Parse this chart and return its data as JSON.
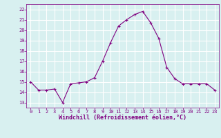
{
  "x": [
    0,
    1,
    2,
    3,
    4,
    5,
    6,
    7,
    8,
    9,
    10,
    11,
    12,
    13,
    14,
    15,
    16,
    17,
    18,
    19,
    20,
    21,
    22,
    23
  ],
  "y": [
    15.0,
    14.2,
    14.2,
    14.3,
    13.0,
    14.8,
    14.9,
    15.0,
    15.4,
    17.0,
    18.8,
    20.4,
    21.0,
    21.5,
    21.8,
    20.7,
    19.2,
    16.4,
    15.3,
    14.8,
    14.8,
    14.8,
    14.8,
    14.2
  ],
  "line_color": "#800080",
  "marker": "+",
  "xlabel": "Windchill (Refroidissement éolien,°C)",
  "xlim": [
    -0.5,
    23.5
  ],
  "ylim": [
    12.5,
    22.5
  ],
  "yticks": [
    13,
    14,
    15,
    16,
    17,
    18,
    19,
    20,
    21,
    22
  ],
  "xticks": [
    0,
    1,
    2,
    3,
    4,
    5,
    6,
    7,
    8,
    9,
    10,
    11,
    12,
    13,
    14,
    15,
    16,
    17,
    18,
    19,
    20,
    21,
    22,
    23
  ],
  "bg_color": "#d8f0f0",
  "grid_color": "#ffffff",
  "text_color": "#800080",
  "marker_size": 3,
  "line_width": 0.8
}
